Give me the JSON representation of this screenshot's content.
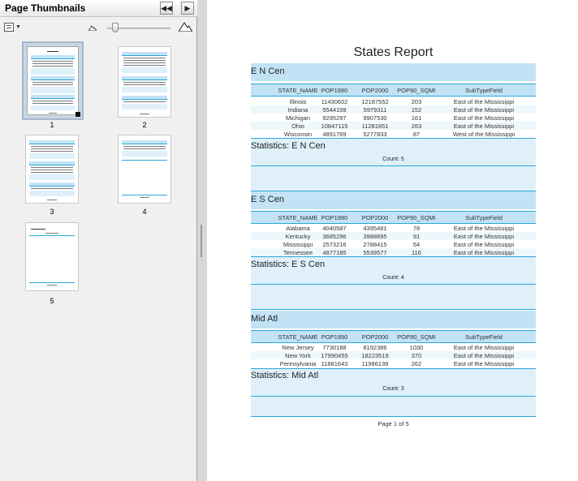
{
  "panel": {
    "title": "Page Thumbnails",
    "thumbnails": [
      {
        "label": "1",
        "selected": true
      },
      {
        "label": "2",
        "selected": false
      },
      {
        "label": "3",
        "selected": false
      },
      {
        "label": "4",
        "selected": false
      },
      {
        "label": "5",
        "selected": false
      }
    ]
  },
  "report": {
    "title": "States Report",
    "columns": [
      "STATE_NAME",
      "POP1990",
      "POP2000",
      "POP90_SQMI",
      "SubTypeField"
    ],
    "groups": [
      {
        "name": "E N Cen",
        "rows": [
          [
            "Illinois",
            "11430602",
            "12187552",
            "203",
            "East of the Mississippi"
          ],
          [
            "Indiana",
            "5544159",
            "5979311",
            "152",
            "East of the Mississippi"
          ],
          [
            "Michigan",
            "9295297",
            "9907530",
            "161",
            "East of the Mississippi"
          ],
          [
            "Ohio",
            "10847115",
            "11281851",
            "263",
            "East of the Mississippi"
          ],
          [
            "Wisconsin",
            "4891769",
            "5277833",
            "87",
            "West of the Mississippi"
          ]
        ],
        "stats_title": "Statistics: E N Cen",
        "count": "Count: 5"
      },
      {
        "name": "E S Cen",
        "rows": [
          [
            "Alabama",
            "4040587",
            "4395481",
            "78",
            "East of the Mississippi"
          ],
          [
            "Kentucky",
            "3685296",
            "3988695",
            "91",
            "East of the Mississippi"
          ],
          [
            "Mississippi",
            "2573216",
            "2788415",
            "54",
            "East of the Mississippi"
          ],
          [
            "Tennessee",
            "4877185",
            "5539577",
            "116",
            "East of the Mississippi"
          ]
        ],
        "stats_title": "Statistics: E S Cen",
        "count": "Count: 4"
      },
      {
        "name": "Mid Atl",
        "rows": [
          [
            "New Jersey",
            "7730188",
            "8192386",
            "1030",
            "East of the Mississippi"
          ],
          [
            "New York",
            "17990455",
            "18223519",
            "370",
            "East of the Mississippi"
          ],
          [
            "Pennsylvania",
            "11881643",
            "11986139",
            "262",
            "East of the Mississippi"
          ]
        ],
        "stats_title": "Statistics: Mid Atl",
        "count": "Count: 3"
      }
    ],
    "footer": "Page 1 of 5"
  },
  "colors": {
    "band": "#c2e3f6",
    "rule": "#29a7d9",
    "stats_band": "#dff0fa"
  }
}
